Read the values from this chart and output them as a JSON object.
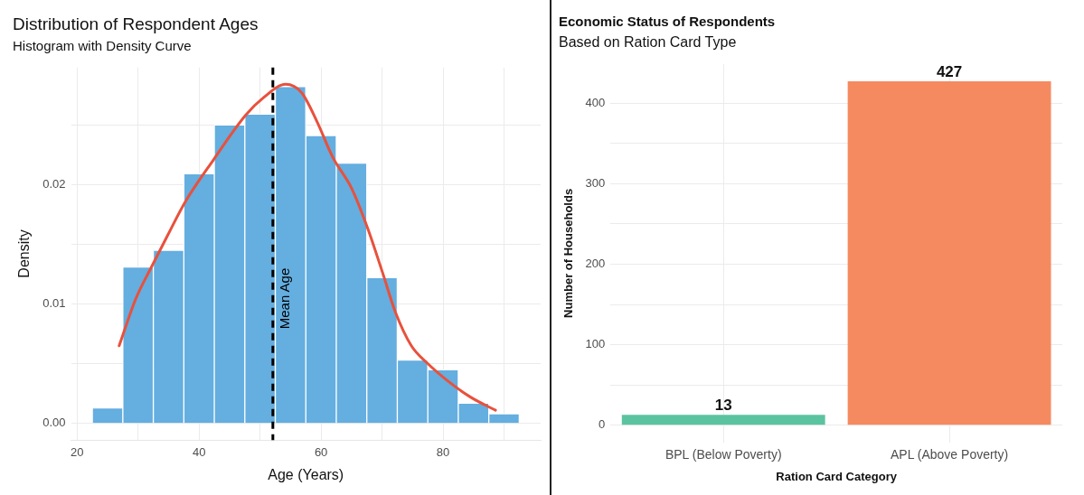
{
  "chart_data": [
    {
      "type": "histogram",
      "title": "Distribution of Respondent Ages",
      "subtitle": "Histogram with Density Curve",
      "xlabel": "Age (Years)",
      "ylabel": "Density",
      "bins": [
        22.5,
        27.5,
        32.5,
        37.5,
        42.5,
        47.5,
        52.5,
        57.5,
        62.5,
        67.5,
        72.5,
        77.5,
        82.5,
        87.5,
        92.5
      ],
      "values": [
        0.0013,
        0.0131,
        0.0145,
        0.0209,
        0.025,
        0.0259,
        0.0282,
        0.0241,
        0.0218,
        0.0122,
        0.0053,
        0.0045,
        0.0017,
        0.0008
      ],
      "color": "#64aee0",
      "series": [
        {
          "type": "line",
          "color": "#e8513c",
          "marker": "none",
          "line_style": "solid",
          "x": [
            26.9,
            29.6,
            32.2,
            34.7,
            37.8,
            42.4,
            47.6,
            50.6,
            54.2,
            56.8,
            59.4,
            61.9,
            65.0,
            67.6,
            70.1,
            72.2,
            74.8,
            77.3,
            80.9,
            84.5,
            88.6
          ],
          "values": [
            0.0065,
            0.0104,
            0.0131,
            0.0156,
            0.0186,
            0.0221,
            0.0258,
            0.0273,
            0.0284,
            0.0277,
            0.0252,
            0.0223,
            0.0197,
            0.0164,
            0.0126,
            0.0093,
            0.0065,
            0.0051,
            0.0035,
            0.0022,
            0.0011
          ]
        }
      ],
      "ref_lines": [
        {
          "axis": "x",
          "value": 52.1,
          "label": "Mean Age",
          "color": "#000000",
          "line_style": "dashed"
        }
      ],
      "xlim": [
        19,
        96
      ],
      "xticks": [
        20,
        {
          "value": 30,
          "label": null
        },
        40,
        {
          "value": 50,
          "label": null
        },
        60,
        {
          "value": 70,
          "label": null
        },
        80,
        {
          "value": 90,
          "label": null
        }
      ],
      "ylim": [
        -0.0014,
        0.0298
      ],
      "yticks": [
        {
          "value": 0,
          "label": "0.00"
        },
        {
          "value": 0.005,
          "label": null
        },
        {
          "value": 0.01,
          "label": "0.01"
        },
        {
          "value": 0.015,
          "label": null
        },
        {
          "value": 0.02,
          "label": "0.02"
        },
        {
          "value": 0.025,
          "label": null
        }
      ],
      "grid": true
    },
    {
      "type": "bar",
      "title": "Economic Status of Respondents",
      "subtitle": "Based on Ration Card Type",
      "xlabel": "Ration Card Category",
      "ylabel": "Number of Households",
      "categories": [
        "BPL (Below Poverty)",
        "APL (Above Poverty)"
      ],
      "values": [
        13,
        427
      ],
      "colors": [
        "#5cc3a0",
        "#f58a60"
      ],
      "data_labels": true,
      "ylim": [
        -21,
        448
      ],
      "yticks": [
        0,
        {
          "value": 50,
          "label": null
        },
        100,
        {
          "value": 150,
          "label": null
        },
        200,
        {
          "value": 250,
          "label": null
        },
        300,
        {
          "value": 350,
          "label": null
        },
        400
      ],
      "grid": true
    }
  ]
}
